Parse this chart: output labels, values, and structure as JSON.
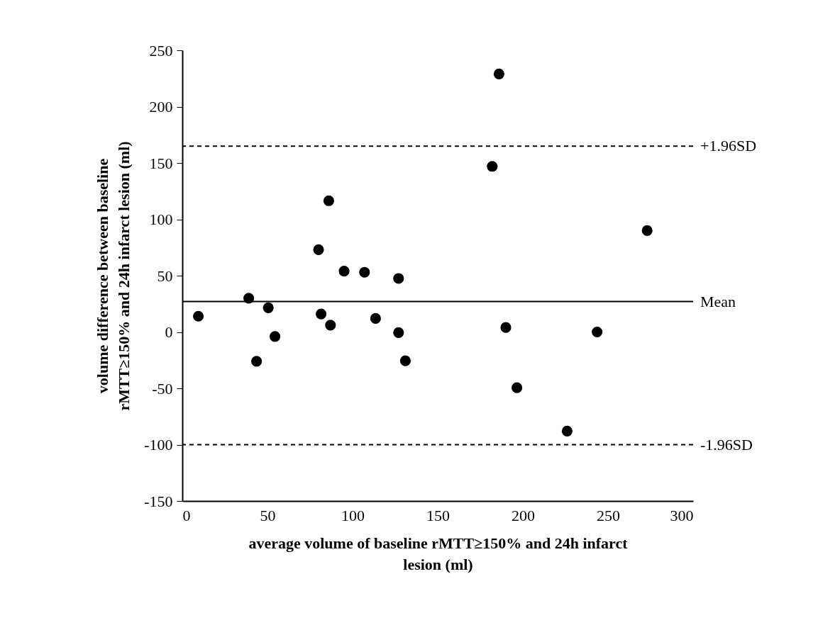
{
  "chart_data": {
    "type": "scatter",
    "xlabel": "average volume of baseline rMTT≥150% and 24h infarct\nlesion (ml)",
    "ylabel": "volume difference between baseline\nrMTT≥150% and 24h infarct lesion (ml)",
    "x": [
      9.4,
      39,
      43.6,
      50.5,
      54.4,
      80,
      81.5,
      86,
      87,
      95,
      107,
      113.5,
      127,
      127,
      131,
      182,
      186,
      190,
      196.5,
      226,
      243.6,
      273
    ],
    "values": [
      14,
      30,
      -26,
      21.5,
      -4,
      73,
      16,
      116.5,
      6,
      54,
      53,
      12,
      47.5,
      -0.5,
      -25.5,
      147,
      229,
      4,
      -49.5,
      -88,
      0,
      90
    ],
    "color": "#000000",
    "marker": "circle",
    "xlim": [
      0,
      300
    ],
    "xticks": [
      0,
      50,
      100,
      150,
      200,
      250,
      300
    ],
    "ylim": [
      -150,
      250
    ],
    "yticks": [
      -150,
      -100,
      -50,
      0,
      50,
      100,
      150,
      200,
      250
    ],
    "grid": false,
    "ref_lines": [
      {
        "axis": "y",
        "value": 165,
        "label": "+1.96SD",
        "color": "#000000",
        "line_style": "dashed"
      },
      {
        "axis": "y",
        "value": 27,
        "label": "Mean",
        "color": "#000000",
        "line_style": "solid"
      },
      {
        "axis": "y",
        "value": -100,
        "label": "-1.96SD",
        "color": "#000000",
        "line_style": "dashed"
      }
    ]
  }
}
